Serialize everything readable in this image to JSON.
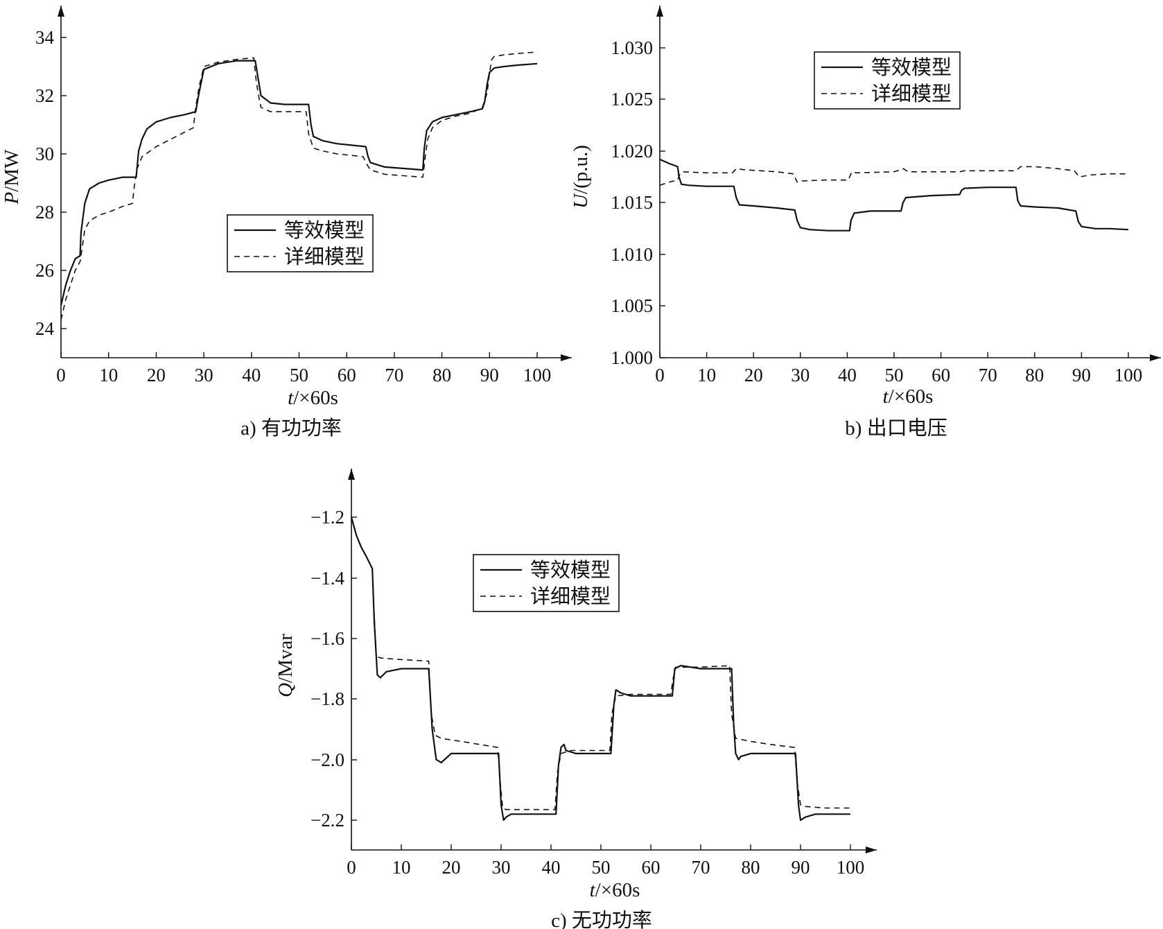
{
  "chart_data": [
    {
      "type": "line",
      "caption": "a) 有功功率",
      "xlabel_var": "t",
      "xlabel_unit": "/×60s",
      "ylabel_var": "P",
      "ylabel_unit": "/MW",
      "xlim": [
        0,
        106
      ],
      "ylim": [
        23,
        35.2
      ],
      "xticks": [
        "0",
        "10",
        "20",
        "30",
        "40",
        "50",
        "60",
        "70",
        "80",
        "90",
        "100"
      ],
      "yticks": [
        "24",
        "26",
        "28",
        "30",
        "32",
        "34"
      ],
      "legend": {
        "position": "center",
        "entries": [
          "等效模型",
          "详细模型"
        ]
      },
      "series": [
        {
          "name": "等效模型",
          "style": "solid",
          "x": [
            0,
            1,
            2,
            3,
            4,
            4.2,
            5,
            6,
            8,
            10,
            13,
            15.8,
            16.3,
            17,
            18,
            20,
            23,
            26,
            28.3,
            29,
            30,
            33,
            37,
            40.8,
            41.5,
            42,
            44,
            47,
            52,
            52.5,
            53,
            55,
            58,
            61,
            64,
            64.5,
            65,
            66,
            68,
            72,
            76,
            76.3,
            76.8,
            78,
            80,
            83,
            86,
            88.5,
            89,
            89.5,
            90,
            91,
            93,
            96,
            100
          ],
          "y": [
            24.8,
            25.5,
            26,
            26.4,
            26.5,
            27.3,
            28.3,
            28.8,
            29.0,
            29.1,
            29.2,
            29.2,
            30.1,
            30.5,
            30.85,
            31.1,
            31.25,
            31.35,
            31.45,
            32.1,
            32.9,
            33.1,
            33.2,
            33.2,
            32.5,
            32.0,
            31.75,
            31.7,
            31.7,
            31.0,
            30.6,
            30.45,
            30.35,
            30.3,
            30.25,
            29.9,
            29.7,
            29.65,
            29.55,
            29.5,
            29.45,
            30.2,
            30.8,
            31.1,
            31.25,
            31.35,
            31.45,
            31.55,
            31.8,
            32.4,
            32.8,
            32.95,
            33.0,
            33.05,
            33.1
          ]
        },
        {
          "name": "详细模型",
          "style": "dashed",
          "x": [
            0,
            1,
            2,
            3,
            4,
            4.3,
            5,
            6,
            8,
            10,
            13,
            15,
            15.4,
            16,
            17,
            20,
            23,
            26,
            27.8,
            28.3,
            29,
            30,
            33,
            37,
            40.5,
            41,
            41.5,
            42,
            44,
            47,
            51.5,
            52,
            53,
            55,
            58,
            61,
            63.5,
            64,
            65,
            66,
            68,
            72,
            76,
            76.5,
            77,
            78,
            80,
            83,
            86,
            88,
            88.5,
            89.5,
            90,
            90.5,
            91,
            93,
            96,
            100
          ],
          "y": [
            24.3,
            25.0,
            25.5,
            26.0,
            26.3,
            26.6,
            27.4,
            27.7,
            27.9,
            28.0,
            28.2,
            28.3,
            28.9,
            29.5,
            29.9,
            30.25,
            30.5,
            30.75,
            30.9,
            31.6,
            32.3,
            33.0,
            33.15,
            33.25,
            33.3,
            32.5,
            32.0,
            31.6,
            31.45,
            31.45,
            31.45,
            30.7,
            30.2,
            30.1,
            30.0,
            29.95,
            29.9,
            29.7,
            29.45,
            29.4,
            29.3,
            29.25,
            29.2,
            29.9,
            30.5,
            30.9,
            31.15,
            31.3,
            31.4,
            31.55,
            31.6,
            32.1,
            32.8,
            33.25,
            33.35,
            33.4,
            33.45,
            33.5
          ]
        }
      ]
    },
    {
      "type": "line",
      "caption": "b) 出口电压",
      "xlabel_var": "t",
      "xlabel_unit": "/×60s",
      "ylabel_var": "U",
      "ylabel_unit": "/(p.u.)",
      "xlim": [
        0,
        106
      ],
      "ylim": [
        1.0,
        1.0343
      ],
      "xticks": [
        "0",
        "10",
        "20",
        "30",
        "40",
        "50",
        "60",
        "70",
        "80",
        "90",
        "100"
      ],
      "yticks": [
        "1.000",
        "1.005",
        "1.010",
        "1.015",
        "1.020",
        "1.025",
        "1.030"
      ],
      "legend": {
        "position": "top-center",
        "entries": [
          "等效模型",
          "详细模型"
        ]
      },
      "series": [
        {
          "name": "等效模型",
          "style": "solid",
          "x": [
            0,
            2,
            3.8,
            4.1,
            4.6,
            6,
            10,
            15.8,
            16.3,
            17,
            20,
            25,
            28.8,
            29.3,
            30,
            32,
            36,
            40.5,
            40.8,
            41.5,
            45,
            51.5,
            51.9,
            52.5,
            58,
            64,
            64.4,
            65,
            70,
            76,
            76.4,
            77,
            80,
            85,
            88.8,
            89.3,
            90,
            93,
            96,
            100
          ],
          "y": [
            1.0192,
            1.0188,
            1.0185,
            1.0175,
            1.0168,
            1.0167,
            1.0166,
            1.0166,
            1.0155,
            1.0148,
            1.0147,
            1.0145,
            1.0143,
            1.0133,
            1.0126,
            1.0124,
            1.0123,
            1.0123,
            1.0133,
            1.014,
            1.0142,
            1.0142,
            1.015,
            1.0155,
            1.0157,
            1.0158,
            1.0162,
            1.0164,
            1.0165,
            1.0165,
            1.0152,
            1.0147,
            1.0146,
            1.0145,
            1.0142,
            1.0132,
            1.0127,
            1.0125,
            1.0125,
            1.0124
          ]
        },
        {
          "name": "详细模型",
          "style": "dashed",
          "x": [
            0,
            2,
            3.8,
            4.3,
            5,
            10,
            15.5,
            16.3,
            18,
            25,
            28.5,
            29.3,
            30,
            35,
            40.2,
            41,
            42,
            50,
            52,
            53,
            58,
            64,
            65,
            70,
            76,
            77,
            80,
            85,
            88.5,
            89.5,
            92,
            96,
            100
          ],
          "y": [
            1.0167,
            1.017,
            1.0172,
            1.0178,
            1.018,
            1.0179,
            1.0179,
            1.0183,
            1.0182,
            1.018,
            1.0178,
            1.017,
            1.0171,
            1.0172,
            1.0172,
            1.018,
            1.0179,
            1.018,
            1.0183,
            1.018,
            1.018,
            1.018,
            1.0181,
            1.0181,
            1.0181,
            1.0185,
            1.0185,
            1.0183,
            1.0181,
            1.0175,
            1.0177,
            1.0178,
            1.0178
          ]
        }
      ]
    },
    {
      "type": "line",
      "caption": "c) 无功功率",
      "xlabel_var": "t",
      "xlabel_unit": "/×60s",
      "ylabel_var": "Q",
      "ylabel_unit": "/Mvar",
      "xlim": [
        0,
        106
      ],
      "ylim": [
        -2.3,
        -1.077
      ],
      "xticks": [
        "0",
        "10",
        "20",
        "30",
        "40",
        "50",
        "60",
        "70",
        "80",
        "90",
        "100"
      ],
      "yticks": [
        "−1.2",
        "−1.4",
        "−1.6",
        "−1.8",
        "−2.0",
        "−2.2"
      ],
      "legend": {
        "position": "upper-center",
        "entries": [
          "等效模型",
          "详细模型"
        ]
      },
      "series": [
        {
          "name": "等效模型",
          "style": "solid",
          "x": [
            0,
            1,
            2,
            3,
            4.2,
            4.6,
            5.2,
            5.8,
            7,
            10,
            15.5,
            16.2,
            17,
            18,
            20,
            25,
            29.5,
            30,
            30.5,
            31,
            32,
            35,
            41,
            41.5,
            42,
            42.6,
            43,
            45,
            52,
            52.6,
            53,
            54,
            56,
            60,
            64.3,
            64.8,
            66,
            70,
            76.2,
            76.6,
            77,
            77.6,
            78,
            80,
            84,
            89,
            89.6,
            90,
            91,
            93,
            96,
            100
          ],
          "y": [
            -1.2,
            -1.26,
            -1.3,
            -1.33,
            -1.37,
            -1.55,
            -1.72,
            -1.73,
            -1.71,
            -1.7,
            -1.7,
            -1.9,
            -2.0,
            -2.01,
            -1.98,
            -1.98,
            -1.98,
            -2.15,
            -2.2,
            -2.19,
            -2.18,
            -2.18,
            -2.18,
            -2.02,
            -1.96,
            -1.95,
            -1.97,
            -1.98,
            -1.98,
            -1.82,
            -1.77,
            -1.78,
            -1.79,
            -1.79,
            -1.79,
            -1.7,
            -1.69,
            -1.7,
            -1.7,
            -1.88,
            -1.98,
            -2.0,
            -1.99,
            -1.98,
            -1.98,
            -1.98,
            -2.15,
            -2.2,
            -2.19,
            -2.18,
            -2.18,
            -2.18
          ]
        },
        {
          "name": "详细模型",
          "style": "dashed",
          "x": [
            0,
            1,
            2,
            3,
            4.2,
            4.5,
            5,
            6,
            10,
            15.5,
            16,
            16.8,
            18,
            22,
            29.3,
            29.8,
            30.3,
            31,
            35,
            40.8,
            41.3,
            42,
            44,
            51.8,
            52.2,
            53,
            56,
            64,
            64.5,
            65,
            70,
            75.8,
            76.2,
            77,
            80,
            84,
            88.8,
            89.3,
            90,
            91,
            95,
            100
          ],
          "y": [
            -1.2,
            -1.26,
            -1.3,
            -1.33,
            -1.37,
            -1.5,
            -1.66,
            -1.665,
            -1.67,
            -1.675,
            -1.85,
            -1.92,
            -1.93,
            -1.94,
            -1.96,
            -2.07,
            -2.16,
            -2.165,
            -2.165,
            -2.165,
            -2.04,
            -1.98,
            -1.97,
            -1.97,
            -1.85,
            -1.79,
            -1.785,
            -1.785,
            -1.73,
            -1.695,
            -1.695,
            -1.69,
            -1.85,
            -1.93,
            -1.94,
            -1.95,
            -1.96,
            -2.07,
            -2.15,
            -2.155,
            -2.16,
            -2.16
          ]
        }
      ]
    }
  ]
}
